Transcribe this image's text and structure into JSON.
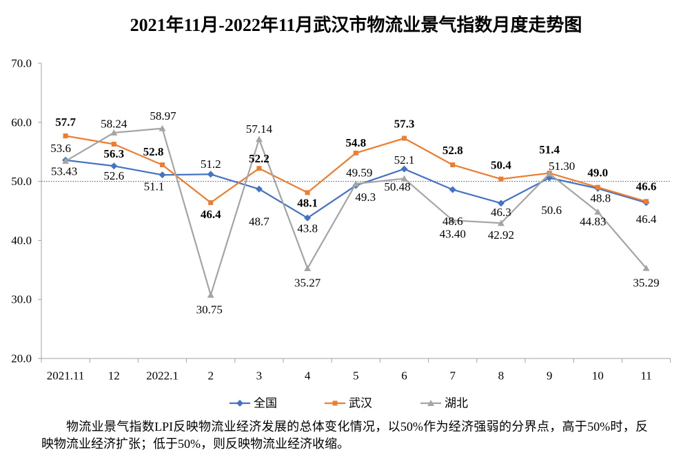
{
  "chart_data": {
    "type": "line",
    "title": "2021年11月-2022年11月武汉市物流业景气指数月度走势图",
    "categories": [
      "2021.11",
      "12",
      "2022.1",
      "2",
      "3",
      "4",
      "5",
      "6",
      "7",
      "8",
      "9",
      "10",
      "11"
    ],
    "ylim": [
      20,
      70
    ],
    "y_ticks": [
      "20.0",
      "30.0",
      "40.0",
      "50.0",
      "60.0",
      "70.0"
    ],
    "reference_line": 50.0,
    "grid": false,
    "legend_position": "bottom",
    "series": [
      {
        "name": "全国",
        "color": "#4472C4",
        "marker": "diamond",
        "values": [
          53.6,
          52.6,
          51.1,
          51.2,
          48.7,
          43.8,
          49.3,
          52.1,
          48.6,
          46.3,
          50.6,
          48.8,
          46.4
        ],
        "labels": [
          "53.6",
          "52.6",
          "51.1",
          "51.2",
          "48.7",
          "43.8",
          "49.3",
          "52.1",
          "48.6",
          "46.3",
          "50.6",
          "48.8",
          "46.4"
        ]
      },
      {
        "name": "武汉",
        "color": "#ED7D31",
        "marker": "square",
        "values": [
          57.7,
          56.3,
          52.8,
          46.4,
          52.2,
          48.1,
          54.8,
          57.3,
          52.8,
          50.4,
          51.4,
          49.0,
          46.6
        ],
        "labels": [
          "57.7",
          "56.3",
          "52.8",
          "46.4",
          "52.2",
          "48.1",
          "54.8",
          "57.3",
          "52.8",
          "50.4",
          "51.4",
          "49.0",
          "46.6"
        ]
      },
      {
        "name": "湖北",
        "color": "#A5A5A5",
        "marker": "triangle",
        "values": [
          53.43,
          58.24,
          58.97,
          30.75,
          57.14,
          35.27,
          49.59,
          50.48,
          43.4,
          42.92,
          51.3,
          44.83,
          35.29
        ],
        "labels": [
          "53.43",
          "58.24",
          "58.97",
          "30.75",
          "57.14",
          "35.27",
          "49.59",
          "50.48",
          "43.40",
          "42.92",
          "51.30",
          "44.83",
          "35.29"
        ]
      }
    ]
  },
  "footnote": "物流业景气指数LPI反映物流业经济发展的总体变化情况，以50%作为经济强弱的分界点，高于50%时，反映物流业经济扩张；低于50%，则反映物流业经济收缩。"
}
